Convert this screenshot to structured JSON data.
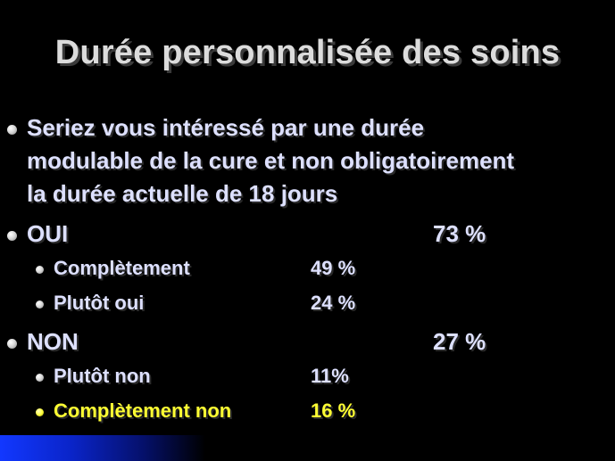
{
  "title": "Durée personnalisée des soins",
  "question": {
    "lines": [
      "Seriez vous intéressé par une durée",
      "modulable de la cure et non obligatoirement",
      "la durée actuelle de 18 jours"
    ]
  },
  "oui": {
    "label": "OUI",
    "value": "73 %",
    "items": [
      {
        "label": "Complètement",
        "value": "49 %"
      },
      {
        "label": "Plutôt oui",
        "value": "24 %"
      }
    ]
  },
  "non": {
    "label": "NON",
    "value": "27 %",
    "items": [
      {
        "label": "Plutôt non",
        "value": "11%"
      },
      {
        "label": "Complètement non",
        "value": "16 %"
      }
    ]
  },
  "colors": {
    "background": "#000000",
    "text": "#dde0ff",
    "highlight": "#ffff33",
    "accent_bar": "#1238ff"
  }
}
